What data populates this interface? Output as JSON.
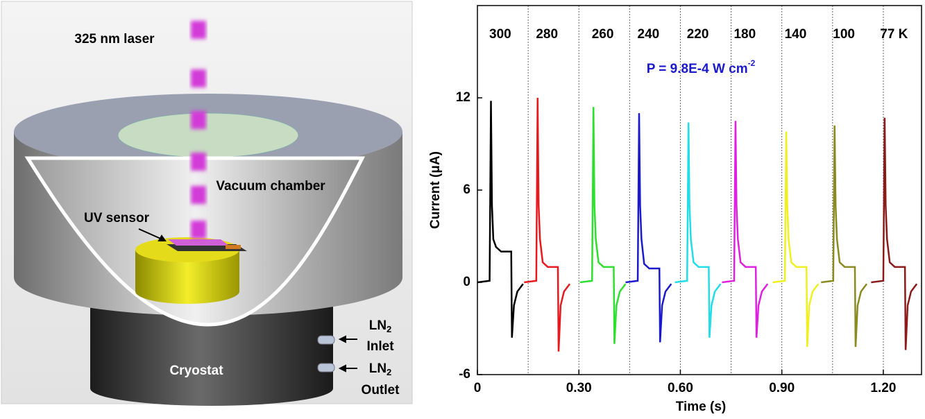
{
  "illustration": {
    "laser": "325 nm laser",
    "chamber": "Vacuum chamber",
    "sensor": "UV sensor",
    "cryostat": "Cryostat",
    "inlet": {
      "text": "LN",
      "sub": "2",
      "line2": "Inlet"
    },
    "outlet": {
      "text": "LN",
      "sub": "2",
      "line2": "Outlet"
    }
  },
  "chart_data": {
    "type": "line",
    "x_label": "Time (s)",
    "y_label": "Current (μA)",
    "annotation": {
      "text": "P = 9.8E-4 W cm",
      "superscript": "-2",
      "color": "#1a1acc"
    },
    "xlim": [
      0,
      1.313
    ],
    "ylim": [
      -6,
      18
    ],
    "xticks": [
      0,
      {
        "value": 0.3,
        "label": "0.30"
      },
      {
        "value": 0.6,
        "label": "0.60"
      },
      {
        "value": 0.9,
        "label": "0.90"
      },
      {
        "value": 1.2,
        "label": "1.20"
      }
    ],
    "yticks": [
      -6,
      0,
      6,
      12
    ],
    "separators": [
      0.15,
      0.3,
      0.45,
      0.6,
      0.75,
      0.9,
      1.05,
      1.2
    ],
    "series": [
      {
        "name": "300",
        "color": "#000000",
        "x": [
          0,
          0.036,
          0.04,
          0.043,
          0.047,
          0.055,
          0.07,
          0.1,
          0.102,
          0.108,
          0.118,
          0.135
        ],
        "values": [
          0,
          0.1,
          11.8,
          5,
          2.8,
          2.3,
          2,
          2,
          -3.6,
          -1.5,
          -0.6,
          -0.1
        ]
      },
      {
        "name": "280",
        "color": "#e8191e",
        "x": [
          0.138,
          0.174,
          0.178,
          0.181,
          0.185,
          0.193,
          0.208,
          0.238,
          0.24,
          0.246,
          0.256,
          0.273
        ],
        "values": [
          0,
          0.1,
          12,
          5,
          2.8,
          1.3,
          1,
          1,
          -4.5,
          -1.5,
          -0.6,
          -0.1
        ]
      },
      {
        "name": "260",
        "color": "#2ee02e",
        "x": [
          0.303,
          0.339,
          0.343,
          0.346,
          0.35,
          0.358,
          0.373,
          0.403,
          0.405,
          0.411,
          0.421,
          0.438
        ],
        "values": [
          0,
          0.1,
          11.4,
          5,
          2.8,
          1.3,
          1,
          1,
          -4,
          -1.5,
          -0.6,
          -0.1
        ]
      },
      {
        "name": "240",
        "color": "#1a1acc",
        "x": [
          0.438,
          0.474,
          0.478,
          0.481,
          0.485,
          0.493,
          0.508,
          0.538,
          0.54,
          0.546,
          0.556,
          0.573
        ],
        "values": [
          0,
          0.1,
          11,
          5,
          2.8,
          1.2,
          0.9,
          0.9,
          -3.9,
          -1.5,
          -0.6,
          -0.1
        ]
      },
      {
        "name": "220",
        "color": "#22dde8",
        "x": [
          0.584,
          0.62,
          0.624,
          0.627,
          0.631,
          0.639,
          0.654,
          0.684,
          0.686,
          0.692,
          0.702,
          0.719
        ],
        "values": [
          0,
          0.1,
          10.4,
          5,
          2.8,
          1.3,
          1,
          1,
          -3.6,
          -1.5,
          -0.6,
          -0.1
        ]
      },
      {
        "name": "180",
        "color": "#e020e0",
        "x": [
          0.723,
          0.759,
          0.763,
          0.766,
          0.77,
          0.778,
          0.793,
          0.823,
          0.825,
          0.831,
          0.841,
          0.858
        ],
        "values": [
          0,
          0.1,
          10.5,
          5,
          2.8,
          1.3,
          1,
          1,
          -3.6,
          -1.5,
          -0.6,
          -0.1
        ]
      },
      {
        "name": "140",
        "color": "#f0f020",
        "x": [
          0.873,
          0.909,
          0.913,
          0.916,
          0.92,
          0.928,
          0.943,
          0.973,
          0.975,
          0.981,
          0.991,
          1.008
        ],
        "values": [
          0,
          0.1,
          9.8,
          5,
          2.8,
          1.3,
          1,
          1,
          -4.2,
          -1.5,
          -0.6,
          -0.1
        ]
      },
      {
        "name": "100",
        "color": "#8a8a20",
        "x": [
          1.016,
          1.052,
          1.056,
          1.059,
          1.063,
          1.071,
          1.086,
          1.116,
          1.118,
          1.124,
          1.134,
          1.151
        ],
        "values": [
          0,
          0.1,
          10.2,
          5,
          2.8,
          1.3,
          1,
          1,
          -4.2,
          -1.5,
          -0.6,
          -0.1
        ]
      },
      {
        "name": "77 K",
        "color": "#8b1a1a",
        "x": [
          1.164,
          1.2,
          1.204,
          1.207,
          1.211,
          1.219,
          1.234,
          1.264,
          1.266,
          1.272,
          1.282,
          1.299
        ],
        "values": [
          0,
          0.1,
          10.7,
          5,
          2.8,
          1.3,
          1,
          1,
          -4.4,
          -1.5,
          -0.6,
          -0.1
        ]
      }
    ]
  }
}
